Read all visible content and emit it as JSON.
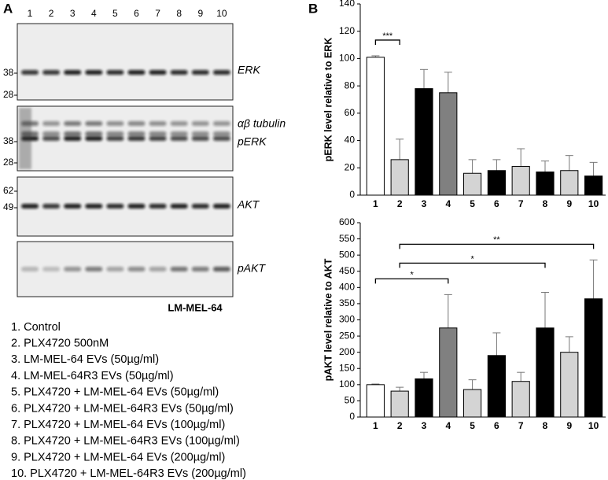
{
  "panel_a": {
    "label": "A",
    "lanes": [
      "1",
      "2",
      "3",
      "4",
      "5",
      "6",
      "7",
      "8",
      "9",
      "10"
    ],
    "blots": [
      {
        "labels": [
          "ERK"
        ],
        "markers": [
          "38",
          "28"
        ]
      },
      {
        "labels": [
          "αβ tubulin",
          "pERK"
        ],
        "markers": [
          "38",
          "28"
        ]
      },
      {
        "labels": [
          "AKT"
        ],
        "markers": [
          "62",
          "49"
        ]
      },
      {
        "labels": [
          "pAKT"
        ],
        "markers": []
      }
    ],
    "cell_line": "LM-MEL-64",
    "legend": [
      "1. Control",
      "2. PLX4720 500nM",
      "3. LM-MEL-64 EVs (50µg/ml)",
      "4. LM-MEL-64R3 EVs (50µg/ml)",
      "5. PLX4720 + LM-MEL-64 EVs (50µg/ml)",
      "6. PLX4720 + LM-MEL-64R3 EVs (50µg/ml)",
      "7. PLX4720 + LM-MEL-64 EVs (100µg/ml)",
      "8. PLX4720 + LM-MEL-64R3 EVs (100µg/ml)",
      "9. PLX4720 + LM-MEL-64 EVs (200µg/ml)",
      "10. PLX4720 + LM-MEL-64R3 EVs (200µg/ml)"
    ]
  },
  "panel_b": {
    "label": "B"
  },
  "chart_data": [
    {
      "type": "bar",
      "y_label": "pERK level relative to ERK",
      "categories": [
        "1",
        "2",
        "3",
        "4",
        "5",
        "6",
        "7",
        "8",
        "9",
        "10"
      ],
      "values": [
        101,
        26,
        78,
        75,
        16,
        18,
        21,
        17,
        18,
        14
      ],
      "errors": [
        1,
        15,
        14,
        15,
        10,
        8,
        13,
        8,
        11,
        10
      ],
      "colors": [
        "#ffffff",
        "#d4d4d4",
        "#000000",
        "#808080",
        "#d4d4d4",
        "#000000",
        "#d4d4d4",
        "#000000",
        "#d4d4d4",
        "#000000"
      ],
      "ylim": [
        0,
        140
      ],
      "yticks": [
        0,
        20,
        40,
        60,
        80,
        100,
        120,
        140
      ],
      "annotations": [
        {
          "label": "***",
          "categories": [
            "1",
            "2"
          ]
        }
      ]
    },
    {
      "type": "bar",
      "y_label": "pAKT level relative to AKT",
      "categories": [
        "1",
        "2",
        "3",
        "4",
        "5",
        "6",
        "7",
        "8",
        "9",
        "10"
      ],
      "values": [
        100,
        80,
        118,
        275,
        85,
        190,
        110,
        275,
        200,
        365
      ],
      "errors": [
        2,
        12,
        20,
        103,
        30,
        70,
        28,
        110,
        48,
        120
      ],
      "colors": [
        "#ffffff",
        "#d4d4d4",
        "#000000",
        "#808080",
        "#d4d4d4",
        "#000000",
        "#d4d4d4",
        "#000000",
        "#d4d4d4",
        "#000000"
      ],
      "ylim": [
        0,
        600
      ],
      "yticks": [
        0,
        50,
        100,
        150,
        200,
        250,
        300,
        350,
        400,
        450,
        500,
        550,
        600
      ],
      "annotations": [
        {
          "label": "*",
          "categories": [
            "1",
            "4"
          ]
        },
        {
          "label": "*",
          "categories": [
            "2",
            "8"
          ]
        },
        {
          "label": "**",
          "categories": [
            "2",
            "10"
          ]
        }
      ]
    }
  ]
}
